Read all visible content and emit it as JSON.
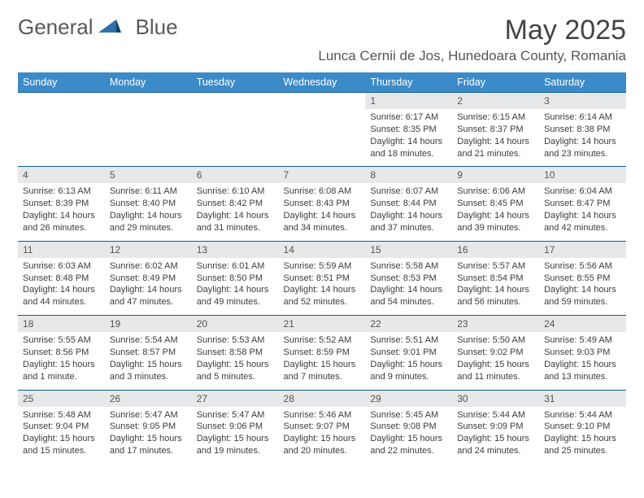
{
  "logo": {
    "word1": "General",
    "word2": "Blue"
  },
  "title": "May 2025",
  "location": "Lunca Cernii de Jos, Hunedoara County, Romania",
  "colors": {
    "header_bg": "#3b8bc9",
    "header_text": "#ffffff",
    "daynum_bg": "#e7e8e9",
    "row_border": "#0f5b97",
    "body_text": "#3c3c3c",
    "logo_gray": "#5a5a5a",
    "logo_blue": "#2f6fa8"
  },
  "days_of_week": [
    "Sunday",
    "Monday",
    "Tuesday",
    "Wednesday",
    "Thursday",
    "Friday",
    "Saturday"
  ],
  "weeks": [
    {
      "nums": [
        "",
        "",
        "",
        "",
        "1",
        "2",
        "3"
      ],
      "cells": [
        null,
        null,
        null,
        null,
        {
          "sunrise": "6:17 AM",
          "sunset": "8:35 PM",
          "daylight": "14 hours and 18 minutes."
        },
        {
          "sunrise": "6:15 AM",
          "sunset": "8:37 PM",
          "daylight": "14 hours and 21 minutes."
        },
        {
          "sunrise": "6:14 AM",
          "sunset": "8:38 PM",
          "daylight": "14 hours and 23 minutes."
        }
      ]
    },
    {
      "nums": [
        "4",
        "5",
        "6",
        "7",
        "8",
        "9",
        "10"
      ],
      "cells": [
        {
          "sunrise": "6:13 AM",
          "sunset": "8:39 PM",
          "daylight": "14 hours and 26 minutes."
        },
        {
          "sunrise": "6:11 AM",
          "sunset": "8:40 PM",
          "daylight": "14 hours and 29 minutes."
        },
        {
          "sunrise": "6:10 AM",
          "sunset": "8:42 PM",
          "daylight": "14 hours and 31 minutes."
        },
        {
          "sunrise": "6:08 AM",
          "sunset": "8:43 PM",
          "daylight": "14 hours and 34 minutes."
        },
        {
          "sunrise": "6:07 AM",
          "sunset": "8:44 PM",
          "daylight": "14 hours and 37 minutes."
        },
        {
          "sunrise": "6:06 AM",
          "sunset": "8:45 PM",
          "daylight": "14 hours and 39 minutes."
        },
        {
          "sunrise": "6:04 AM",
          "sunset": "8:47 PM",
          "daylight": "14 hours and 42 minutes."
        }
      ]
    },
    {
      "nums": [
        "11",
        "12",
        "13",
        "14",
        "15",
        "16",
        "17"
      ],
      "cells": [
        {
          "sunrise": "6:03 AM",
          "sunset": "8:48 PM",
          "daylight": "14 hours and 44 minutes."
        },
        {
          "sunrise": "6:02 AM",
          "sunset": "8:49 PM",
          "daylight": "14 hours and 47 minutes."
        },
        {
          "sunrise": "6:01 AM",
          "sunset": "8:50 PM",
          "daylight": "14 hours and 49 minutes."
        },
        {
          "sunrise": "5:59 AM",
          "sunset": "8:51 PM",
          "daylight": "14 hours and 52 minutes."
        },
        {
          "sunrise": "5:58 AM",
          "sunset": "8:53 PM",
          "daylight": "14 hours and 54 minutes."
        },
        {
          "sunrise": "5:57 AM",
          "sunset": "8:54 PM",
          "daylight": "14 hours and 56 minutes."
        },
        {
          "sunrise": "5:56 AM",
          "sunset": "8:55 PM",
          "daylight": "14 hours and 59 minutes."
        }
      ]
    },
    {
      "nums": [
        "18",
        "19",
        "20",
        "21",
        "22",
        "23",
        "24"
      ],
      "cells": [
        {
          "sunrise": "5:55 AM",
          "sunset": "8:56 PM",
          "daylight": "15 hours and 1 minute."
        },
        {
          "sunrise": "5:54 AM",
          "sunset": "8:57 PM",
          "daylight": "15 hours and 3 minutes."
        },
        {
          "sunrise": "5:53 AM",
          "sunset": "8:58 PM",
          "daylight": "15 hours and 5 minutes."
        },
        {
          "sunrise": "5:52 AM",
          "sunset": "8:59 PM",
          "daylight": "15 hours and 7 minutes."
        },
        {
          "sunrise": "5:51 AM",
          "sunset": "9:01 PM",
          "daylight": "15 hours and 9 minutes."
        },
        {
          "sunrise": "5:50 AM",
          "sunset": "9:02 PM",
          "daylight": "15 hours and 11 minutes."
        },
        {
          "sunrise": "5:49 AM",
          "sunset": "9:03 PM",
          "daylight": "15 hours and 13 minutes."
        }
      ]
    },
    {
      "nums": [
        "25",
        "26",
        "27",
        "28",
        "29",
        "30",
        "31"
      ],
      "cells": [
        {
          "sunrise": "5:48 AM",
          "sunset": "9:04 PM",
          "daylight": "15 hours and 15 minutes."
        },
        {
          "sunrise": "5:47 AM",
          "sunset": "9:05 PM",
          "daylight": "15 hours and 17 minutes."
        },
        {
          "sunrise": "5:47 AM",
          "sunset": "9:06 PM",
          "daylight": "15 hours and 19 minutes."
        },
        {
          "sunrise": "5:46 AM",
          "sunset": "9:07 PM",
          "daylight": "15 hours and 20 minutes."
        },
        {
          "sunrise": "5:45 AM",
          "sunset": "9:08 PM",
          "daylight": "15 hours and 22 minutes."
        },
        {
          "sunrise": "5:44 AM",
          "sunset": "9:09 PM",
          "daylight": "15 hours and 24 minutes."
        },
        {
          "sunrise": "5:44 AM",
          "sunset": "9:10 PM",
          "daylight": "15 hours and 25 minutes."
        }
      ]
    }
  ],
  "labels": {
    "sunrise": "Sunrise:",
    "sunset": "Sunset:",
    "daylight": "Daylight:"
  }
}
